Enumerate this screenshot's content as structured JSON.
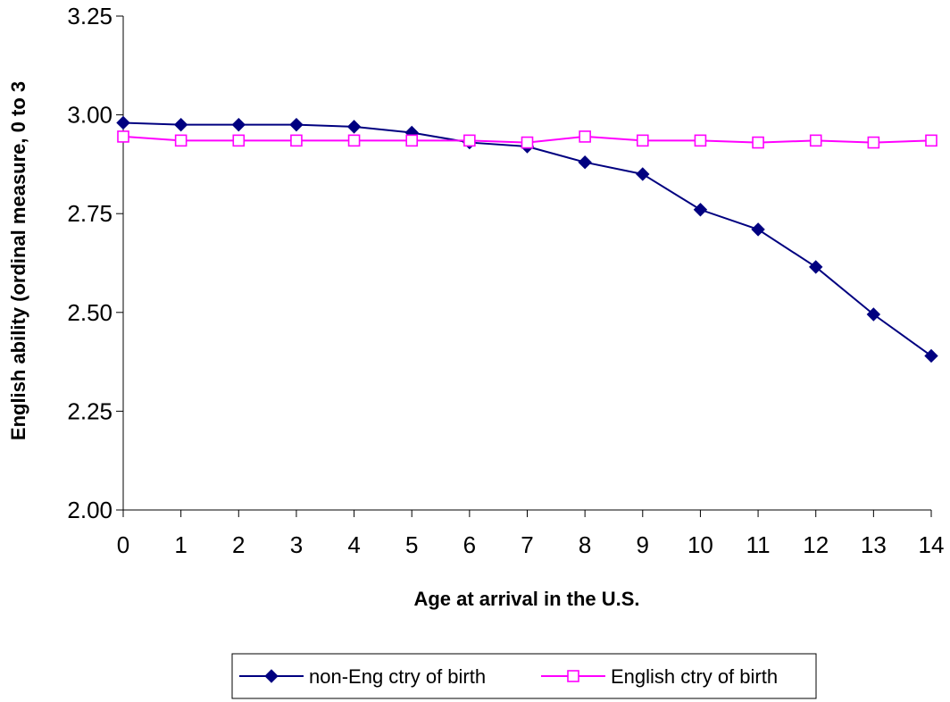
{
  "chart_data": {
    "type": "line",
    "title": "",
    "xlabel": "Age at arrival in the U.S.",
    "ylabel": "English ability (ordinal measure, 0 to 3",
    "x": [
      0,
      1,
      2,
      3,
      4,
      5,
      6,
      7,
      8,
      9,
      10,
      11,
      12,
      13,
      14
    ],
    "x_tick_labels": [
      "0",
      "1",
      "2",
      "3",
      "4",
      "5",
      "6",
      "7",
      "8",
      "9",
      "10",
      "11",
      "12",
      "13",
      "14"
    ],
    "ylim": [
      2.0,
      3.25
    ],
    "y_ticks": [
      2.0,
      2.25,
      2.5,
      2.75,
      3.0,
      3.25
    ],
    "y_tick_labels": [
      "2.00",
      "2.25",
      "2.50",
      "2.75",
      "3.00",
      "3.25"
    ],
    "grid": false,
    "legend_position": "bottom",
    "series": [
      {
        "name": "non-Eng ctry of birth",
        "color": "#000080",
        "marker": "filled-diamond",
        "values": [
          2.98,
          2.975,
          2.975,
          2.975,
          2.97,
          2.955,
          2.93,
          2.92,
          2.88,
          2.85,
          2.76,
          2.71,
          2.615,
          2.495,
          2.39
        ]
      },
      {
        "name": "English ctry of birth",
        "color": "#FF00FF",
        "marker": "open-square",
        "values": [
          2.945,
          2.935,
          2.935,
          2.935,
          2.935,
          2.935,
          2.935,
          2.93,
          2.945,
          2.935,
          2.935,
          2.93,
          2.935,
          2.93,
          2.935
        ]
      }
    ]
  }
}
